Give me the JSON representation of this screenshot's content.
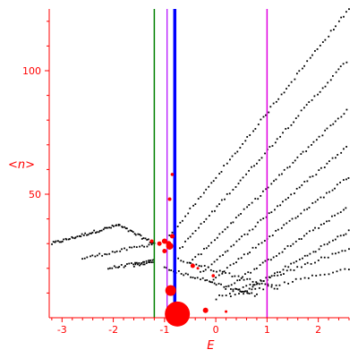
{
  "chart_data": {
    "type": "scatter",
    "title": "",
    "xlabel": "E",
    "ylabel": "<n>",
    "xlim": [
      -3.25,
      2.6
    ],
    "ylim": [
      0,
      125
    ],
    "grid": false,
    "legend": "none",
    "x_ticks": [
      {
        "value": -3,
        "label": "-3"
      },
      {
        "value": -2,
        "label": "-2"
      },
      {
        "value": -1,
        "label": "-1"
      },
      {
        "value": 0,
        "label": "0"
      },
      {
        "value": 1,
        "label": "1"
      },
      {
        "value": 2,
        "label": "2"
      }
    ],
    "y_ticks": [
      {
        "value": 50,
        "label": "50"
      },
      {
        "value": 100,
        "label": "100"
      }
    ],
    "axis_color": "#ff0000",
    "vertical_lines": [
      {
        "x": -1.2,
        "color": "#008000",
        "width": 1.5
      },
      {
        "x": -0.95,
        "color": "#b000ff",
        "width": 1.2
      },
      {
        "x": -0.8,
        "color": "#0000ff",
        "width": 3.5
      },
      {
        "x": 1.0,
        "color": "#e000e0",
        "width": 1.5
      }
    ],
    "background_series": {
      "color": "#000000",
      "bands": [
        {
          "x_start": -3.2,
          "x_end": -1.9,
          "y_start": 30,
          "y_end": 37.5,
          "points": 45
        },
        {
          "x_start": -1.9,
          "x_end": -1.2,
          "y_start": 37.5,
          "y_end": 30,
          "points": 25
        },
        {
          "x_start": -2.6,
          "x_end": -1.2,
          "y_start": 24,
          "y_end": 30,
          "points": 30
        },
        {
          "x_start": -2.1,
          "x_end": -1.2,
          "y_start": 20,
          "y_end": 23,
          "points": 25
        },
        {
          "x_start": -1.6,
          "x_end": -1.2,
          "y_start": 21,
          "y_end": 23,
          "points": 12
        },
        {
          "x_start": -0.9,
          "x_end": 2.6,
          "y_start": 33,
          "y_end": 125,
          "points": 70
        },
        {
          "x_start": -0.7,
          "x_end": 2.6,
          "y_start": 28,
          "y_end": 105,
          "points": 65
        },
        {
          "x_start": -0.5,
          "x_end": 2.6,
          "y_start": 22,
          "y_end": 85,
          "points": 60
        },
        {
          "x_start": -0.3,
          "x_end": 2.6,
          "y_start": 18,
          "y_end": 70,
          "points": 55
        },
        {
          "x_start": -0.1,
          "x_end": 2.6,
          "y_start": 15,
          "y_end": 57,
          "points": 50
        },
        {
          "x_start": 0.2,
          "x_end": 2.6,
          "y_start": 12,
          "y_end": 45,
          "points": 45
        },
        {
          "x_start": 0.5,
          "x_end": 2.6,
          "y_start": 10,
          "y_end": 35,
          "points": 40
        },
        {
          "x_start": -1.0,
          "x_end": 0.8,
          "y_start": 20,
          "y_end": 9,
          "points": 40
        },
        {
          "x_start": -0.8,
          "x_end": 1.2,
          "y_start": 24,
          "y_end": 12,
          "points": 35
        },
        {
          "x_start": 0.0,
          "x_end": 2.6,
          "y_start": 8,
          "y_end": 28,
          "points": 40
        },
        {
          "x_start": 0.3,
          "x_end": 2.6,
          "y_start": 9,
          "y_end": 20,
          "points": 30
        }
      ]
    },
    "highlight_series": {
      "color": "#ff0000",
      "points": [
        {
          "x": -0.75,
          "y": 1.5,
          "size": 14
        },
        {
          "x": -0.88,
          "y": 11,
          "size": 6
        },
        {
          "x": -0.9,
          "y": 29,
          "size": 4
        },
        {
          "x": -1.0,
          "y": 31,
          "size": 3
        },
        {
          "x": -1.1,
          "y": 30,
          "size": 2.5
        },
        {
          "x": -1.25,
          "y": 31,
          "size": 2
        },
        {
          "x": -0.85,
          "y": 33,
          "size": 2.5
        },
        {
          "x": -0.9,
          "y": 48,
          "size": 2
        },
        {
          "x": -0.85,
          "y": 58,
          "size": 1.8
        },
        {
          "x": -0.45,
          "y": 21,
          "size": 2.5
        },
        {
          "x": -0.2,
          "y": 3,
          "size": 3
        },
        {
          "x": -0.05,
          "y": 17,
          "size": 1.8
        },
        {
          "x": 0.2,
          "y": 2.5,
          "size": 1.5
        },
        {
          "x": -0.35,
          "y": 20,
          "size": 1.5
        },
        {
          "x": -1.0,
          "y": 27,
          "size": 2.5
        },
        {
          "x": -0.92,
          "y": 30,
          "size": 3
        }
      ]
    }
  }
}
